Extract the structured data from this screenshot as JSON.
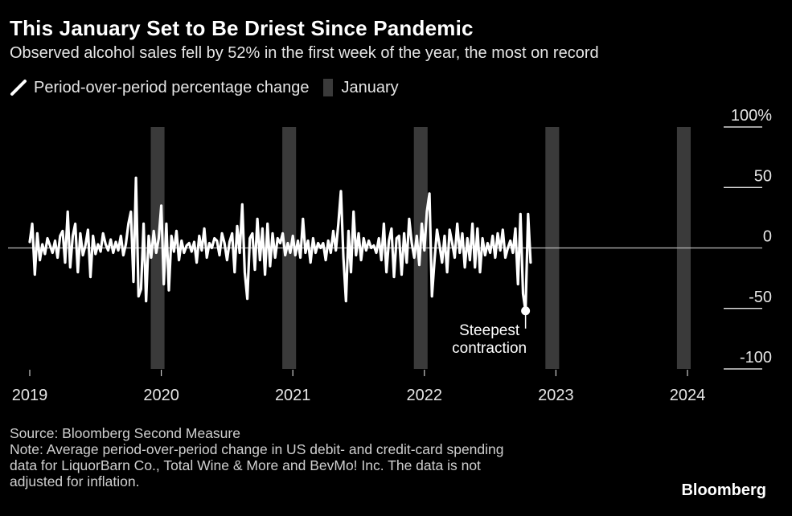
{
  "title": "This January Set to Be Driest Since Pandemic",
  "subtitle": "Observed alcohol sales fell by 52% in the first week of the year, the most on record",
  "legend": {
    "line_label": "Period-over-period percentage change",
    "bar_label": "January"
  },
  "annotation": {
    "line1": "Steepest",
    "line2": "contraction"
  },
  "footer": {
    "source": "Source: Bloomberg Second Measure",
    "note_line1": "Note: Average period-over-period change in US debit- and credit-card spending",
    "note_line2": "data for LiquorBarn Co., Total Wine & More and BevMo! Inc. The data is not",
    "note_line3": "adjusted for inflation."
  },
  "brand": "Bloomberg",
  "colors": {
    "background": "#000000",
    "line": "#ffffff",
    "january_band": "#3a3a3a",
    "gridline": "#ffffff",
    "zero_line": "#bbbbbb"
  },
  "chart_data": {
    "type": "line",
    "title": "This January Set to Be Driest Since Pandemic",
    "subtitle": "Observed alcohol sales fell by 52% in the first week of the year, the most on record",
    "xlabel": "",
    "ylabel": "",
    "x_domain": [
      2019.0,
      2024.25
    ],
    "ylim": [
      -100,
      100
    ],
    "y_ticks": [
      {
        "value": 100,
        "label": "100%"
      },
      {
        "value": 50,
        "label": "50"
      },
      {
        "value": 0,
        "label": "0"
      },
      {
        "value": -50,
        "label": "-50"
      },
      {
        "value": -100,
        "label": "-100"
      }
    ],
    "x_ticks": [
      {
        "value": 2019,
        "label": "2019"
      },
      {
        "value": 2020,
        "label": "2020"
      },
      {
        "value": 2021,
        "label": "2021"
      },
      {
        "value": 2022,
        "label": "2022"
      },
      {
        "value": 2023,
        "label": "2023"
      },
      {
        "value": 2024,
        "label": "2024"
      }
    ],
    "january_bands": [
      [
        2019.92,
        2020.0
      ],
      [
        2020.92,
        2021.0
      ],
      [
        2021.92,
        2022.0
      ],
      [
        2022.92,
        2023.0
      ],
      [
        2023.92,
        2024.0
      ]
    ],
    "series": [
      {
        "name": "Period-over-period percentage change",
        "x_start": 2019.0,
        "x_step": 0.01923,
        "values": [
          5,
          20,
          -22,
          12,
          -10,
          3,
          -5,
          8,
          2,
          -4,
          6,
          -8,
          10,
          14,
          -12,
          30,
          -16,
          10,
          20,
          -20,
          12,
          -6,
          2,
          15,
          -24,
          10,
          -5,
          3,
          -3,
          12,
          3,
          -2,
          7,
          -4,
          5,
          -2,
          10,
          -6,
          3,
          20,
          30,
          -28,
          58,
          -40,
          -34,
          20,
          -44,
          10,
          -8,
          14,
          -4,
          8,
          35,
          -30,
          20,
          -35,
          10,
          -3,
          14,
          -10,
          6,
          -4,
          2,
          4,
          -3,
          5,
          -12,
          10,
          -2,
          16,
          -8,
          4,
          0,
          8,
          6,
          -6,
          12,
          4,
          -10,
          5,
          12,
          -20,
          18,
          -4,
          36,
          -20,
          -42,
          8,
          12,
          -18,
          24,
          -10,
          16,
          -22,
          20,
          -15,
          12,
          -8,
          8,
          4,
          12,
          -6,
          4,
          -4,
          10,
          -6,
          6,
          -8,
          24,
          -4,
          6,
          -12,
          8,
          -4,
          4,
          0,
          4,
          -10,
          6,
          -4,
          14,
          -2,
          20,
          47,
          -8,
          -44,
          14,
          -20,
          30,
          -6,
          12,
          -10,
          8,
          -2,
          6,
          0,
          2,
          -4,
          8,
          -10,
          20,
          -20,
          6,
          16,
          -24,
          8,
          10,
          -22,
          12,
          -12,
          24,
          4,
          -8,
          10,
          -14,
          20,
          -2,
          30,
          45,
          -40,
          -10,
          15,
          2,
          -12,
          10,
          -20,
          15,
          4,
          -8,
          20,
          -4,
          12,
          -16,
          8,
          -10,
          20,
          -16,
          16,
          -20,
          8,
          -6,
          4,
          -4,
          10,
          -8,
          12,
          -2,
          15,
          -8,
          0,
          6,
          -4,
          16,
          -30,
          28,
          -38,
          -52,
          28,
          -12
        ]
      }
    ]
  }
}
